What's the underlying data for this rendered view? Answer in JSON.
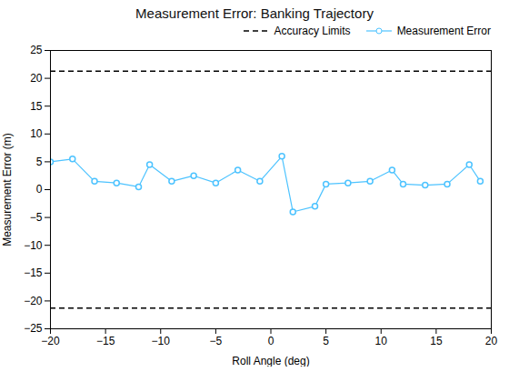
{
  "chart_data": {
    "type": "line",
    "title": "Measurement Error: Banking Trajectory",
    "xlabel": "Roll Angle (deg)",
    "ylabel": "Measurement Error (m)",
    "xlim": [
      -20,
      20
    ],
    "ylim": [
      -25,
      25
    ],
    "xticks": [
      -20,
      -15,
      -10,
      -5,
      0,
      5,
      10,
      15,
      20
    ],
    "yticks": [
      -25,
      -20,
      -15,
      -10,
      -5,
      0,
      5,
      10,
      15,
      20,
      25
    ],
    "grid": false,
    "legend": "upper right",
    "series": [
      {
        "name": "Accuracy Limits",
        "type": "hline",
        "color": "#000000",
        "line_style": "dashed",
        "values": [
          21.3,
          -21.3
        ]
      },
      {
        "name": "Measurement Error",
        "type": "line",
        "color": "#4DC3FF",
        "line_style": "solid",
        "marker": "circle",
        "x": [
          -20,
          -18,
          -16,
          -14,
          -12,
          -11,
          -9,
          -7,
          -5,
          -3,
          -1,
          1,
          2,
          4,
          5,
          7,
          9,
          11,
          12,
          14,
          16,
          18,
          19
        ],
        "values": [
          5.0,
          5.5,
          1.5,
          1.2,
          0.5,
          4.5,
          1.5,
          2.5,
          1.2,
          3.5,
          1.5,
          6.0,
          -4.0,
          -3.0,
          1.0,
          1.2,
          1.5,
          3.5,
          1.0,
          0.8,
          1.0,
          4.5,
          1.5
        ]
      }
    ]
  }
}
